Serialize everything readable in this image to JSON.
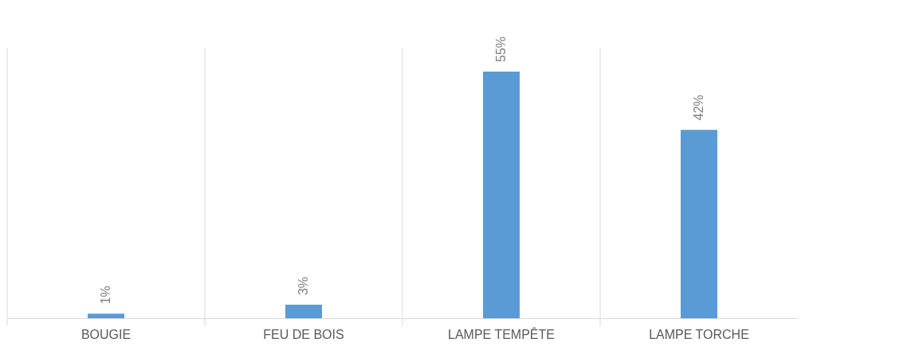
{
  "chart_data": {
    "type": "bar",
    "categories": [
      "BOUGIE",
      "FEU DE BOIS",
      "LAMPE TEMPÊTE",
      "LAMPE TORCHE"
    ],
    "values": [
      1,
      3,
      55,
      42
    ],
    "color": "#5b9bd5",
    "value_labels": [
      "1%",
      "3%",
      "55%",
      "42%"
    ],
    "grid": "x"
  }
}
